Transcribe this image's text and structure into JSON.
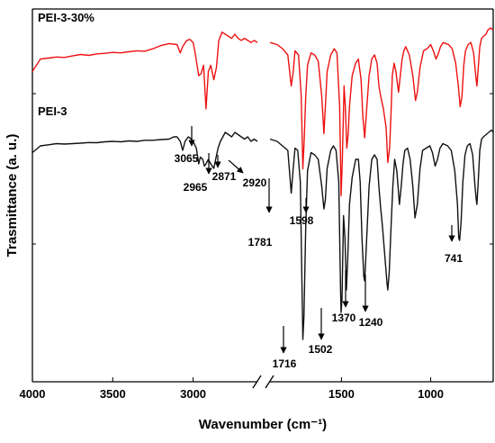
{
  "chart_data": {
    "type": "line",
    "xlabel": "Wavenumber (cm⁻¹)",
    "ylabel": "Trasmittance (a. u.)",
    "x_axis": {
      "reversed": true,
      "broken": true,
      "segments": [
        {
          "range": [
            4000,
            2600
          ],
          "ticks": [
            4000,
            3500,
            3000
          ],
          "tick_labels": [
            "4000",
            "3500",
            "3000"
          ]
        },
        {
          "range": [
            1900,
            650
          ],
          "ticks": [
            1500,
            1000
          ],
          "tick_labels": [
            "1500",
            "1000"
          ]
        }
      ]
    },
    "y_axis": {
      "ticks_shown": false,
      "arbitrary_units": true
    },
    "series": [
      {
        "name": "PEI-3-30%",
        "color": "#ee1111",
        "points": [
          [
            4000,
            0.18
          ],
          [
            3950,
            0.12
          ],
          [
            3900,
            0.115
          ],
          [
            3850,
            0.11
          ],
          [
            3800,
            0.112
          ],
          [
            3750,
            0.105
          ],
          [
            3700,
            0.098
          ],
          [
            3650,
            0.102
          ],
          [
            3600,
            0.095
          ],
          [
            3550,
            0.092
          ],
          [
            3500,
            0.088
          ],
          [
            3450,
            0.09
          ],
          [
            3400,
            0.085
          ],
          [
            3350,
            0.08
          ],
          [
            3300,
            0.082
          ],
          [
            3250,
            0.07
          ],
          [
            3200,
            0.055
          ],
          [
            3150,
            0.045
          ],
          [
            3100,
            0.05
          ],
          [
            3080,
            0.09
          ],
          [
            3065,
            0.06
          ],
          [
            3040,
            0.03
          ],
          [
            3020,
            0.025
          ],
          [
            3000,
            0.04
          ],
          [
            2990,
            0.08
          ],
          [
            2965,
            0.2
          ],
          [
            2950,
            0.19
          ],
          [
            2935,
            0.15
          ],
          [
            2920,
            0.36
          ],
          [
            2905,
            0.18
          ],
          [
            2890,
            0.15
          ],
          [
            2871,
            0.22
          ],
          [
            2855,
            0.16
          ],
          [
            2840,
            0.03
          ],
          [
            2820,
            -0.01
          ],
          [
            2800,
            0.0
          ],
          [
            2780,
            0.01
          ],
          [
            2760,
            0.02
          ],
          [
            2740,
            0.0
          ],
          [
            2720,
            0.02
          ],
          [
            2700,
            0.03
          ],
          [
            2680,
            0.02
          ],
          [
            2660,
            0.03
          ],
          [
            2640,
            0.04
          ],
          [
            2620,
            0.03
          ],
          [
            2600,
            0.04
          ],
          [
            1900,
            0.04
          ],
          [
            1860,
            0.05
          ],
          [
            1830,
            0.07
          ],
          [
            1800,
            0.1
          ],
          [
            1781,
            0.25
          ],
          [
            1770,
            0.18
          ],
          [
            1760,
            0.08
          ],
          [
            1740,
            0.1
          ],
          [
            1725,
            0.3
          ],
          [
            1716,
            0.65
          ],
          [
            1708,
            0.5
          ],
          [
            1700,
            0.3
          ],
          [
            1690,
            0.15
          ],
          [
            1670,
            0.09
          ],
          [
            1650,
            0.1
          ],
          [
            1630,
            0.13
          ],
          [
            1610,
            0.3
          ],
          [
            1598,
            0.48
          ],
          [
            1590,
            0.35
          ],
          [
            1580,
            0.18
          ],
          [
            1560,
            0.1
          ],
          [
            1540,
            0.07
          ],
          [
            1525,
            0.09
          ],
          [
            1510,
            0.35
          ],
          [
            1502,
            0.78
          ],
          [
            1495,
            0.6
          ],
          [
            1485,
            0.25
          ],
          [
            1478,
            0.35
          ],
          [
            1470,
            0.55
          ],
          [
            1462,
            0.48
          ],
          [
            1455,
            0.35
          ],
          [
            1440,
            0.2
          ],
          [
            1420,
            0.14
          ],
          [
            1405,
            0.12
          ],
          [
            1390,
            0.22
          ],
          [
            1380,
            0.4
          ],
          [
            1370,
            0.5
          ],
          [
            1360,
            0.38
          ],
          [
            1345,
            0.2
          ],
          [
            1330,
            0.12
          ],
          [
            1315,
            0.1
          ],
          [
            1300,
            0.14
          ],
          [
            1290,
            0.25
          ],
          [
            1280,
            0.3
          ],
          [
            1265,
            0.36
          ],
          [
            1250,
            0.45
          ],
          [
            1240,
            0.62
          ],
          [
            1230,
            0.55
          ],
          [
            1222,
            0.38
          ],
          [
            1215,
            0.2
          ],
          [
            1205,
            0.14
          ],
          [
            1195,
            0.18
          ],
          [
            1180,
            0.28
          ],
          [
            1170,
            0.2
          ],
          [
            1160,
            0.12
          ],
          [
            1150,
            0.08
          ],
          [
            1140,
            0.06
          ],
          [
            1120,
            0.1
          ],
          [
            1100,
            0.2
          ],
          [
            1085,
            0.32
          ],
          [
            1075,
            0.28
          ],
          [
            1060,
            0.16
          ],
          [
            1040,
            0.08
          ],
          [
            1020,
            0.07
          ],
          [
            1000,
            0.05
          ],
          [
            985,
            0.08
          ],
          [
            970,
            0.12
          ],
          [
            960,
            0.1
          ],
          [
            945,
            0.06
          ],
          [
            930,
            0.04
          ],
          [
            900,
            0.05
          ],
          [
            880,
            0.07
          ],
          [
            860,
            0.14
          ],
          [
            845,
            0.25
          ],
          [
            835,
            0.35
          ],
          [
            825,
            0.3
          ],
          [
            815,
            0.15
          ],
          [
            805,
            0.08
          ],
          [
            790,
            0.05
          ],
          [
            775,
            0.04
          ],
          [
            760,
            0.09
          ],
          [
            748,
            0.2
          ],
          [
            741,
            0.25
          ],
          [
            735,
            0.18
          ],
          [
            725,
            0.06
          ],
          [
            715,
            0.02
          ],
          [
            705,
            0.01
          ],
          [
            690,
            0.0
          ],
          [
            680,
            -0.02
          ],
          [
            665,
            -0.03
          ],
          [
            650,
            -0.02
          ]
        ]
      },
      {
        "name": "PEI-3",
        "color": "#111111",
        "points": [
          [
            4000,
            0.07
          ],
          [
            3950,
            0.04
          ],
          [
            3900,
            0.035
          ],
          [
            3850,
            0.03
          ],
          [
            3800,
            0.032
          ],
          [
            3750,
            0.03
          ],
          [
            3700,
            0.028
          ],
          [
            3650,
            0.025
          ],
          [
            3600,
            0.026
          ],
          [
            3550,
            0.022
          ],
          [
            3500,
            0.02
          ],
          [
            3450,
            0.022
          ],
          [
            3400,
            0.018
          ],
          [
            3350,
            0.02
          ],
          [
            3300,
            0.015
          ],
          [
            3250,
            0.015
          ],
          [
            3200,
            0.012
          ],
          [
            3150,
            0.01
          ],
          [
            3120,
            0.0
          ],
          [
            3100,
            0.0
          ],
          [
            3080,
            0.02
          ],
          [
            3065,
            0.06
          ],
          [
            3050,
            0.02
          ],
          [
            3030,
            0.0
          ],
          [
            3010,
            0.01
          ],
          [
            3000,
            0.02
          ],
          [
            2980,
            0.05
          ],
          [
            2965,
            0.12
          ],
          [
            2955,
            0.09
          ],
          [
            2940,
            0.1
          ],
          [
            2930,
            0.13
          ],
          [
            2920,
            0.12
          ],
          [
            2905,
            0.1
          ],
          [
            2890,
            0.12
          ],
          [
            2871,
            0.14
          ],
          [
            2860,
            0.1
          ],
          [
            2845,
            0.05
          ],
          [
            2830,
            0.02
          ],
          [
            2815,
            0.0
          ],
          [
            2800,
            -0.02
          ],
          [
            2780,
            -0.01
          ],
          [
            2760,
            0.0
          ],
          [
            2740,
            -0.02
          ],
          [
            2720,
            -0.01
          ],
          [
            2700,
            0.0
          ],
          [
            2680,
            0.01
          ],
          [
            2660,
            0.0
          ],
          [
            2640,
            0.02
          ],
          [
            2620,
            0.01
          ],
          [
            2600,
            0.02
          ],
          [
            1900,
            0.01
          ],
          [
            1860,
            0.02
          ],
          [
            1830,
            0.04
          ],
          [
            1800,
            0.06
          ],
          [
            1781,
            0.25
          ],
          [
            1770,
            0.14
          ],
          [
            1760,
            0.05
          ],
          [
            1745,
            0.06
          ],
          [
            1730,
            0.2
          ],
          [
            1720,
            0.7
          ],
          [
            1716,
            0.9
          ],
          [
            1710,
            0.8
          ],
          [
            1700,
            0.4
          ],
          [
            1690,
            0.15
          ],
          [
            1670,
            0.07
          ],
          [
            1650,
            0.08
          ],
          [
            1630,
            0.1
          ],
          [
            1610,
            0.22
          ],
          [
            1598,
            0.32
          ],
          [
            1590,
            0.28
          ],
          [
            1580,
            0.14
          ],
          [
            1560,
            0.06
          ],
          [
            1545,
            0.04
          ],
          [
            1530,
            0.06
          ],
          [
            1515,
            0.2
          ],
          [
            1505,
            0.68
          ],
          [
            1502,
            0.78
          ],
          [
            1497,
            0.72
          ],
          [
            1488,
            0.35
          ],
          [
            1480,
            0.45
          ],
          [
            1472,
            0.68
          ],
          [
            1465,
            0.55
          ],
          [
            1455,
            0.3
          ],
          [
            1440,
            0.18
          ],
          [
            1420,
            0.1
          ],
          [
            1405,
            0.1
          ],
          [
            1395,
            0.2
          ],
          [
            1385,
            0.45
          ],
          [
            1375,
            0.62
          ],
          [
            1370,
            0.64
          ],
          [
            1360,
            0.48
          ],
          [
            1345,
            0.22
          ],
          [
            1330,
            0.1
          ],
          [
            1315,
            0.08
          ],
          [
            1300,
            0.1
          ],
          [
            1290,
            0.22
          ],
          [
            1282,
            0.3
          ],
          [
            1270,
            0.4
          ],
          [
            1255,
            0.55
          ],
          [
            1245,
            0.65
          ],
          [
            1240,
            0.68
          ],
          [
            1232,
            0.6
          ],
          [
            1222,
            0.4
          ],
          [
            1212,
            0.22
          ],
          [
            1202,
            0.1
          ],
          [
            1190,
            0.15
          ],
          [
            1175,
            0.3
          ],
          [
            1165,
            0.22
          ],
          [
            1155,
            0.12
          ],
          [
            1145,
            0.06
          ],
          [
            1130,
            0.05
          ],
          [
            1115,
            0.1
          ],
          [
            1100,
            0.22
          ],
          [
            1088,
            0.36
          ],
          [
            1075,
            0.3
          ],
          [
            1060,
            0.14
          ],
          [
            1045,
            0.06
          ],
          [
            1025,
            0.05
          ],
          [
            1005,
            0.04
          ],
          [
            990,
            0.07
          ],
          [
            975,
            0.13
          ],
          [
            962,
            0.1
          ],
          [
            948,
            0.05
          ],
          [
            932,
            0.03
          ],
          [
            905,
            0.04
          ],
          [
            885,
            0.06
          ],
          [
            865,
            0.15
          ],
          [
            850,
            0.3
          ],
          [
            843,
            0.45
          ],
          [
            838,
            0.46
          ],
          [
            830,
            0.38
          ],
          [
            820,
            0.2
          ],
          [
            808,
            0.08
          ],
          [
            795,
            0.04
          ],
          [
            780,
            0.03
          ],
          [
            765,
            0.08
          ],
          [
            752,
            0.22
          ],
          [
            745,
            0.28
          ],
          [
            741,
            0.3
          ],
          [
            735,
            0.22
          ],
          [
            725,
            0.06
          ],
          [
            715,
            0.01
          ],
          [
            705,
            0.0
          ],
          [
            690,
            -0.01
          ],
          [
            675,
            -0.02
          ],
          [
            660,
            -0.03
          ],
          [
            650,
            -0.02
          ]
        ]
      }
    ],
    "annotations": [
      {
        "label": "3065",
        "x": 3065
      },
      {
        "label": "2965",
        "x": 2965
      },
      {
        "label": "2871",
        "x": 2871
      },
      {
        "label": "2920",
        "x": 2920
      },
      {
        "label": "1781",
        "x": 1781
      },
      {
        "label": "1598",
        "x": 1598
      },
      {
        "label": "1716",
        "x": 1716
      },
      {
        "label": "1502",
        "x": 1502
      },
      {
        "label": "1370",
        "x": 1370
      },
      {
        "label": "1240",
        "x": 1240
      },
      {
        "label": "741",
        "x": 741
      }
    ]
  }
}
